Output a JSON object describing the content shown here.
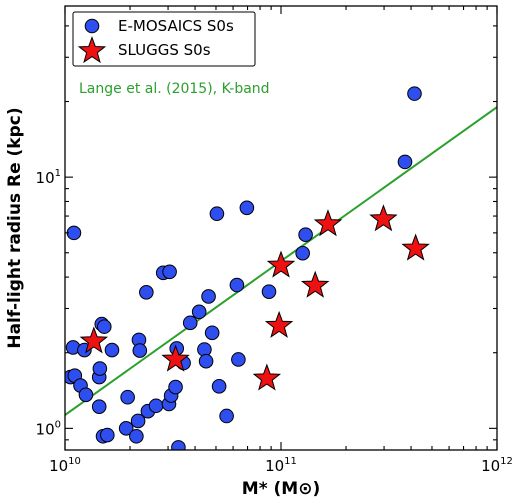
{
  "chart_data": {
    "type": "scatter",
    "x_scale": "log",
    "y_scale": "log",
    "xlim": [
      10000000000.0,
      1000000000000.0
    ],
    "ylim": [
      0.82,
      48
    ],
    "xlabel": "M* (M⊙)",
    "ylabel": "Half-light radius Re (kpc)",
    "x_ticks": [
      {
        "value": 10000000000.0,
        "base": "10",
        "exp": "10"
      },
      {
        "value": 100000000000.0,
        "base": "10",
        "exp": "11"
      },
      {
        "value": 1000000000000.0,
        "base": "10",
        "exp": "12"
      }
    ],
    "y_ticks": [
      {
        "value": 1,
        "base": "10",
        "exp": "0"
      },
      {
        "value": 10,
        "base": "10",
        "exp": "1"
      }
    ],
    "legend": {
      "placement": "top-left",
      "entries": [
        {
          "label": "E-MOSAICS S0s",
          "marker": "circle",
          "color": "#2f4ef0"
        },
        {
          "label": "SLUGGS S0s",
          "marker": "star",
          "color": "#ee1111"
        }
      ]
    },
    "annotation": {
      "text": "Lange et al. (2015), K-band",
      "color": "#2ca02c"
    },
    "series": [
      {
        "name": "E-MOSAICS S0s",
        "marker": "circle",
        "color": "#2f4ef0",
        "points": [
          [
            11000000000.0,
            6.0
          ],
          [
            10600000000.0,
            1.6
          ],
          [
            10900000000.0,
            2.1
          ],
          [
            11100000000.0,
            1.62
          ],
          [
            11800000000.0,
            1.48
          ],
          [
            12300000000.0,
            2.05
          ],
          [
            12500000000.0,
            1.36
          ],
          [
            14400000000.0,
            1.22
          ],
          [
            14400000000.0,
            1.6
          ],
          [
            14500000000.0,
            1.73
          ],
          [
            14800000000.0,
            2.6
          ],
          [
            15200000000.0,
            2.54
          ],
          [
            15000000000.0,
            0.93
          ],
          [
            15700000000.0,
            0.94
          ],
          [
            16500000000.0,
            2.05
          ],
          [
            19200000000.0,
            1.0
          ],
          [
            19500000000.0,
            1.33
          ],
          [
            21400000000.0,
            0.93
          ],
          [
            21800000000.0,
            1.07
          ],
          [
            22000000000.0,
            2.25
          ],
          [
            22200000000.0,
            2.04
          ],
          [
            23800000000.0,
            3.48
          ],
          [
            24200000000.0,
            1.17
          ],
          [
            26400000000.0,
            1.23
          ],
          [
            28500000000.0,
            4.16
          ],
          [
            30500000000.0,
            4.2
          ],
          [
            30300000000.0,
            1.25
          ],
          [
            31000000000.0,
            1.35
          ],
          [
            32500000000.0,
            1.46
          ],
          [
            32900000000.0,
            2.08
          ],
          [
            33500000000.0,
            0.84
          ],
          [
            35400000000.0,
            1.82
          ],
          [
            38000000000.0,
            2.63
          ],
          [
            41800000000.0,
            2.91
          ],
          [
            44200000000.0,
            2.06
          ],
          [
            45000000000.0,
            1.85
          ],
          [
            46200000000.0,
            3.35
          ],
          [
            48000000000.0,
            2.4
          ],
          [
            50500000000.0,
            7.15
          ],
          [
            51700000000.0,
            1.47
          ],
          [
            56000000000.0,
            1.12
          ],
          [
            62500000000.0,
            3.72
          ],
          [
            63500000000.0,
            1.88
          ],
          [
            69500000000.0,
            7.55
          ],
          [
            88000000000.0,
            3.5
          ],
          [
            126000000000.0,
            4.98
          ],
          [
            130000000000.0,
            5.9
          ],
          [
            375000000000.0,
            11.5
          ],
          [
            415000000000.0,
            21.5
          ]
        ]
      },
      {
        "name": "SLUGGS S0s",
        "marker": "star",
        "color": "#ee1111",
        "points": [
          [
            13600000000.0,
            2.22
          ],
          [
            32500000000.0,
            1.88
          ],
          [
            86000000000.0,
            1.58
          ],
          [
            98000000000.0,
            2.56
          ],
          [
            100000000000.0,
            4.45
          ],
          [
            144000000000.0,
            3.7
          ],
          [
            165000000000.0,
            6.5
          ],
          [
            298000000000.0,
            6.8
          ],
          [
            420000000000.0,
            5.2
          ]
        ]
      }
    ],
    "fit_line": {
      "label": "Lange et al. (2015), K-band",
      "color": "#2ca02c",
      "points": [
        [
          10000000000.0,
          1.13
        ],
        [
          1000000000000.0,
          19.0
        ]
      ]
    }
  }
}
